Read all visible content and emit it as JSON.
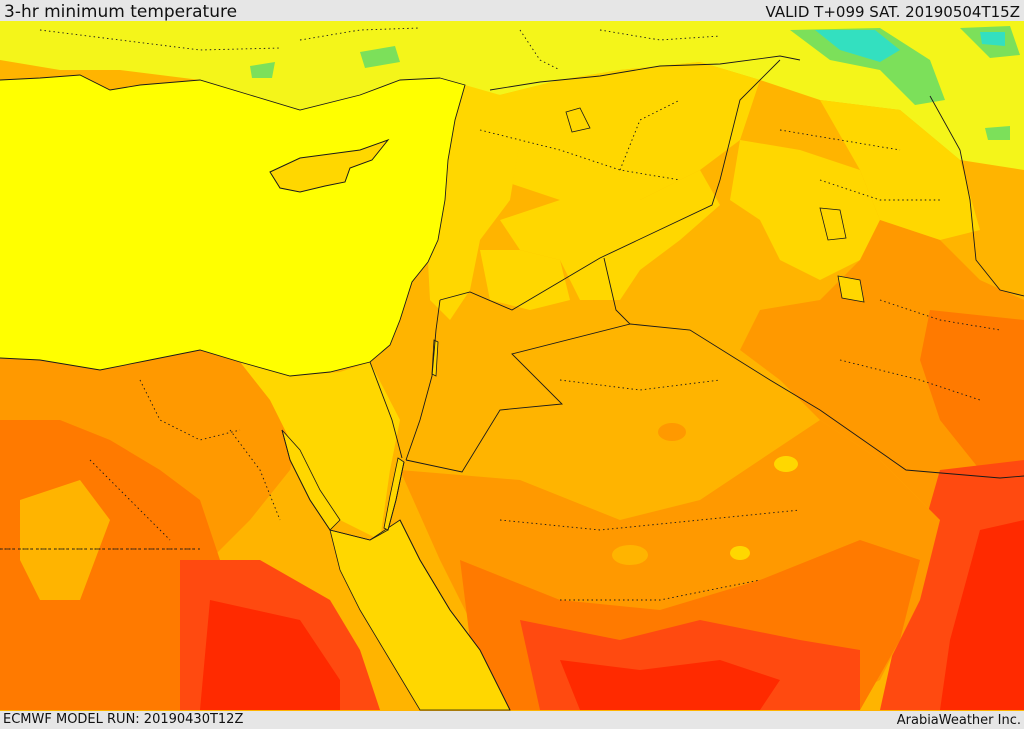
{
  "header": {
    "title": "3-hr minimum temperature",
    "valid": "VALID T+099 SAT. 20190504T15Z"
  },
  "footer": {
    "model_run": "ECMWF MODEL RUN: 20190430T12Z",
    "credit": "ArabiaWeather Inc."
  },
  "map": {
    "field": "3-hr minimum temperature",
    "palette": {
      "sea": "#ffff00",
      "light_yellow": "#f4f51a",
      "gold": "#ffd700",
      "amber": "#ffb400",
      "orange": "#ff9900",
      "dark_orange": "#ff7a00",
      "red_orange": "#ff4a10",
      "red": "#ff2a00",
      "green": "#7ce05a",
      "cyan": "#33e0c0",
      "border": "#1a1a1a"
    }
  }
}
